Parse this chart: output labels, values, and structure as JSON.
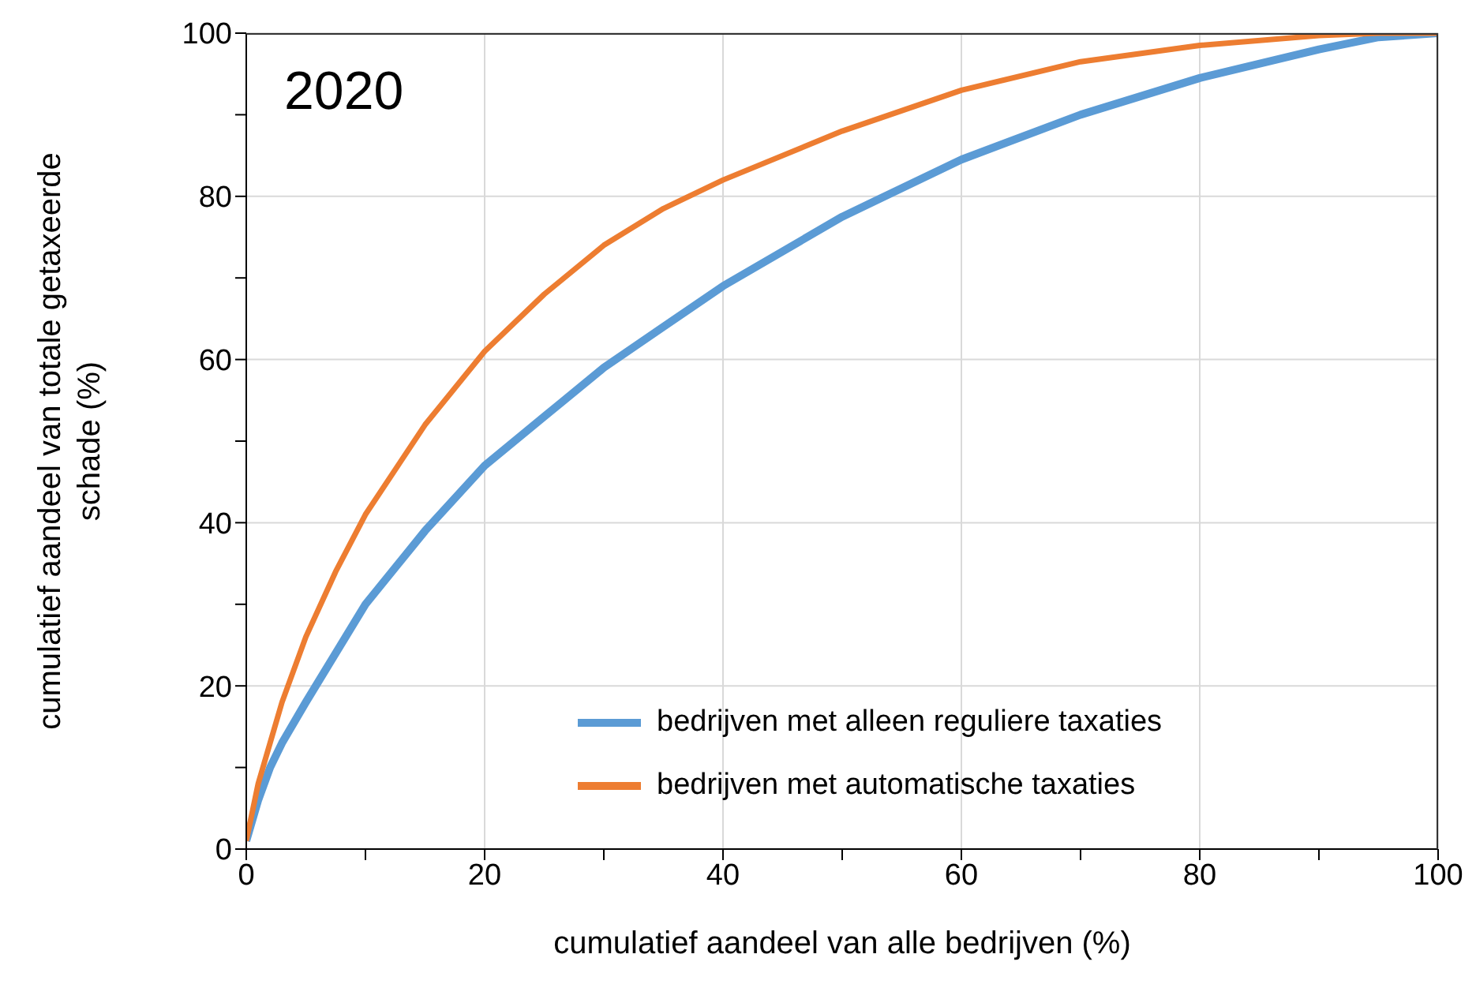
{
  "chart_data": {
    "type": "line",
    "title": "2020",
    "xlabel": "cumulatief aandeel van alle bedrijven (%)",
    "ylabel": "cumulatief aandeel van totale getaxeerde schade (%)",
    "x": [
      0,
      1,
      2,
      3,
      5,
      7.5,
      10,
      15,
      20,
      25,
      30,
      35,
      40,
      50,
      60,
      70,
      80,
      90,
      95,
      100
    ],
    "series": [
      {
        "name": "bedrijven met alleen reguliere taxaties",
        "color": "#5b9bd5",
        "values": [
          1,
          6,
          10,
          13,
          18,
          24,
          30,
          39,
          47,
          53,
          59,
          64,
          69,
          77.5,
          84.5,
          90,
          94.5,
          98,
          99.5,
          100
        ]
      },
      {
        "name": "bedrijven met automatische taxaties",
        "color": "#ed7d31",
        "values": [
          1,
          8,
          13,
          18,
          26,
          34,
          41,
          52,
          61,
          68,
          74,
          78.5,
          82,
          88,
          93,
          96.5,
          98.5,
          99.7,
          100,
          100
        ]
      }
    ],
    "xlim": [
      0,
      100
    ],
    "ylim": [
      0,
      100
    ],
    "xticks": [
      0,
      {
        "value": 10,
        "label": null
      },
      20,
      {
        "value": 30,
        "label": null
      },
      40,
      {
        "value": 50,
        "label": null
      },
      60,
      {
        "value": 70,
        "label": null
      },
      80,
      {
        "value": 90,
        "label": null
      },
      100
    ],
    "yticks": [
      0,
      {
        "value": 10,
        "label": null
      },
      20,
      {
        "value": 30,
        "label": null
      },
      40,
      {
        "value": 50,
        "label": null
      },
      60,
      {
        "value": 70,
        "label": null
      },
      80,
      {
        "value": 90,
        "label": null
      },
      100
    ],
    "grid": true,
    "legend": "bottom right",
    "marker": "none",
    "line_style": "solid"
  }
}
